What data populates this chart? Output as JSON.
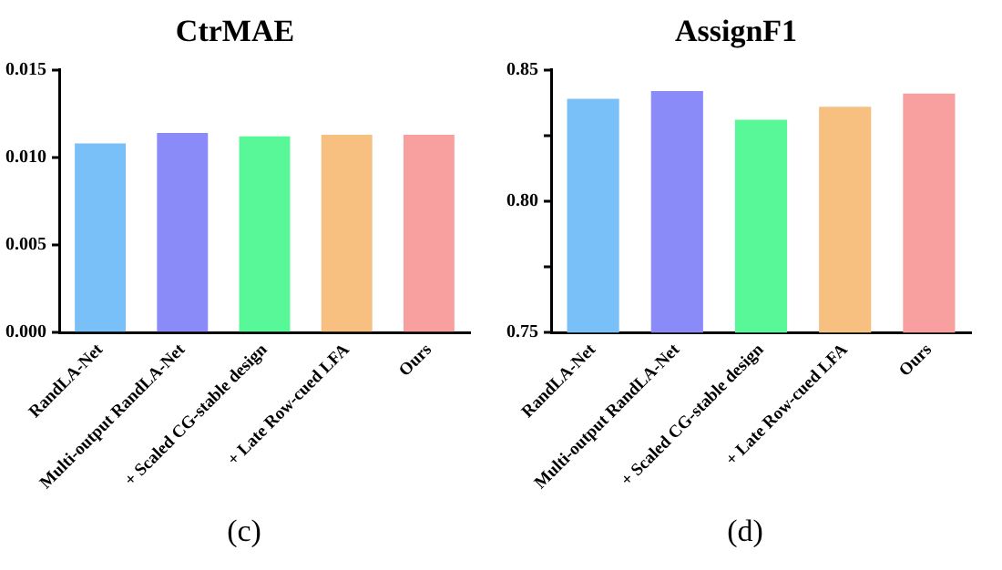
{
  "chart_data": [
    {
      "type": "bar",
      "title": "CtrMAE",
      "categories": [
        "RandLA-Net",
        "Multi-output RandLA-Net",
        "+ Scaled CG-stable design",
        "+ Late Row-cued LFA",
        "Ours"
      ],
      "values": [
        0.0108,
        0.0114,
        0.0112,
        0.0113,
        0.0113
      ],
      "colors": [
        "#7ac0f8",
        "#8a8af8",
        "#58f898",
        "#f8c080",
        "#f8a0a0"
      ],
      "ylim": [
        0,
        0.015
      ],
      "yticks": [
        {
          "value": 0,
          "label": "0.000"
        },
        {
          "value": 0.005,
          "label": "0.005"
        },
        {
          "value": 0.01,
          "label": "0.010"
        },
        {
          "value": 0.015,
          "label": "0.015"
        }
      ],
      "grid": false,
      "annotations": [
        "(c)"
      ]
    },
    {
      "type": "bar",
      "title": "AssignF1",
      "categories": [
        "RandLA-Net",
        "Multi-output RandLA-Net",
        "+ Scaled CG-stable design",
        "+ Late Row-cued LFA",
        "Ours"
      ],
      "values": [
        0.839,
        0.842,
        0.831,
        0.836,
        0.841
      ],
      "colors": [
        "#7ac0f8",
        "#8a8af8",
        "#58f898",
        "#f8c080",
        "#f8a0a0"
      ],
      "ylim": [
        0.75,
        0.85
      ],
      "yticks": [
        {
          "value": 0.75,
          "label": "0.75"
        },
        {
          "value": 0.775,
          "label": null
        },
        {
          "value": 0.8,
          "label": "0.80"
        },
        {
          "value": 0.825,
          "label": null
        },
        {
          "value": 0.85,
          "label": "0.85"
        }
      ],
      "grid": false,
      "annotations": [
        "(d)"
      ]
    }
  ]
}
